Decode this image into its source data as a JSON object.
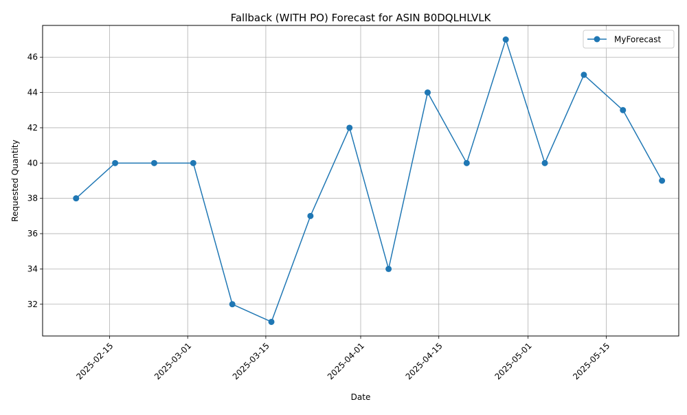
{
  "chart_data": {
    "type": "line",
    "title": "Fallback (WITH PO) Forecast for ASIN B0DQLHLVLK",
    "xlabel": "Date",
    "ylabel": "Requested Quantity",
    "x_ticks": [
      "2025-02-15",
      "2025-03-01",
      "2025-03-15",
      "2025-04-01",
      "2025-04-15",
      "2025-05-01",
      "2025-05-15"
    ],
    "y_ticks": [
      32,
      34,
      36,
      38,
      40,
      42,
      44,
      46
    ],
    "xlim": [
      "2025-02-03",
      "2025-05-28"
    ],
    "ylim": [
      30.2,
      47.8
    ],
    "grid": true,
    "legend_position": "top-right",
    "series": [
      {
        "name": "MyForecast",
        "color": "#1f77b4",
        "marker": "circle",
        "x": [
          "2025-02-09",
          "2025-02-16",
          "2025-02-23",
          "2025-03-02",
          "2025-03-09",
          "2025-03-16",
          "2025-03-23",
          "2025-03-30",
          "2025-04-06",
          "2025-04-13",
          "2025-04-20",
          "2025-04-27",
          "2025-05-04",
          "2025-05-11",
          "2025-05-18",
          "2025-05-25"
        ],
        "values": [
          38,
          40,
          40,
          40,
          32,
          31,
          37,
          42,
          34,
          44,
          40,
          47,
          40,
          45,
          43,
          39
        ]
      }
    ]
  }
}
